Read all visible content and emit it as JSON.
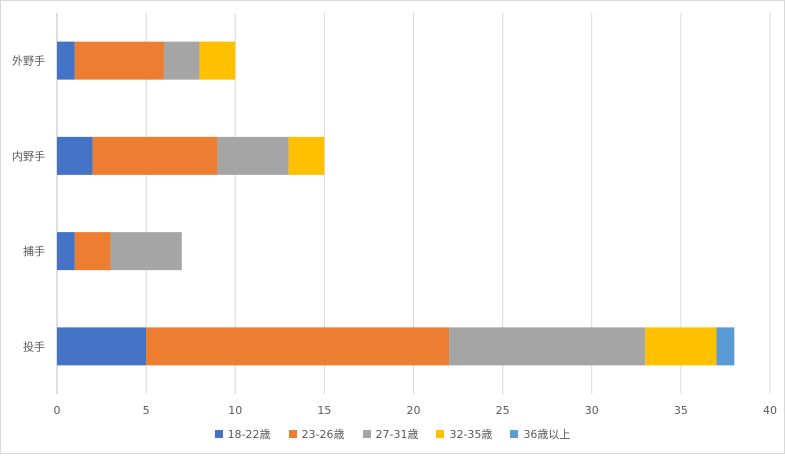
{
  "chart_data": {
    "type": "bar",
    "orientation": "horizontal",
    "stacked": true,
    "categories": [
      "投手",
      "捕手",
      "内野手",
      "外野手"
    ],
    "series": [
      {
        "name": "18-22歳",
        "color": "#4472c4",
        "values": [
          5,
          1,
          2,
          1
        ]
      },
      {
        "name": "23-26歳",
        "color": "#ed7d31",
        "values": [
          17,
          2,
          7,
          5
        ]
      },
      {
        "name": "27-31歳",
        "color": "#a5a5a5",
        "values": [
          11,
          4,
          4,
          2
        ]
      },
      {
        "name": "32-35歳",
        "color": "#ffc000",
        "values": [
          4,
          0,
          2,
          2
        ]
      },
      {
        "name": "36歳以上",
        "color": "#5b9bd5",
        "values": [
          1,
          0,
          0,
          0
        ]
      }
    ],
    "xlim": [
      0,
      40
    ],
    "xticks": [
      "0",
      "5",
      "10",
      "15",
      "20",
      "25",
      "30",
      "35",
      "40"
    ],
    "grid": true,
    "legend_position": "bottom"
  }
}
